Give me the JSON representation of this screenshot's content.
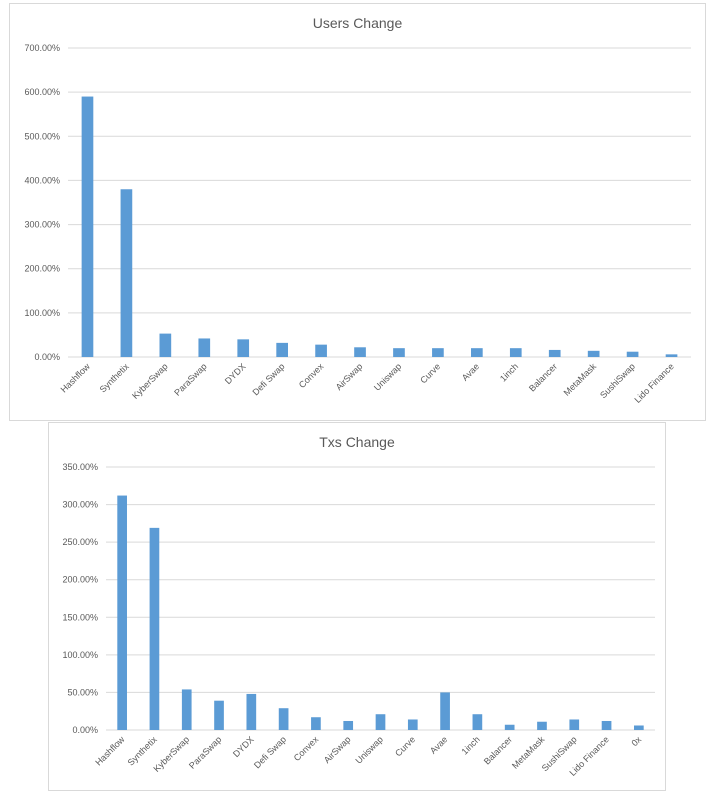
{
  "chart_data": [
    {
      "type": "bar",
      "title": "Users Change",
      "xlabel": "",
      "ylabel": "",
      "categories": [
        "Hashflow",
        "Synthetix",
        "KyberSwap",
        "ParaSwap",
        "DYDX",
        "Defi Swap",
        "Convex",
        "AirSwap",
        "Uniswap",
        "Curve",
        "Avae",
        "1inch",
        "Balancer",
        "MetaMask",
        "SushiSwap",
        "Lido Finance"
      ],
      "values": [
        590,
        380,
        53,
        42,
        40,
        32,
        28,
        22,
        20,
        20,
        20,
        20,
        16,
        14,
        12,
        6
      ],
      "yticks": [
        "0.00%",
        "100.00%",
        "200.00%",
        "300.00%",
        "400.00%",
        "500.00%",
        "600.00%",
        "700.00%"
      ],
      "ylim": [
        0,
        700
      ],
      "grid": true,
      "bar_color": "#5b9bd5"
    },
    {
      "type": "bar",
      "title": "Txs Change",
      "xlabel": "",
      "ylabel": "",
      "categories": [
        "Hashflow",
        "Synthetix",
        "KyberSwap",
        "ParaSwap",
        "DYDX",
        "Defi Swap",
        "Convex",
        "AirSwap",
        "Uniswap",
        "Curve",
        "Avae",
        "1inch",
        "Balancer",
        "MetaMask",
        "SushiSwap",
        "Lido Finance",
        "0x"
      ],
      "values": [
        312,
        269,
        54,
        39,
        48,
        29,
        17,
        12,
        21,
        14,
        50,
        21,
        7,
        11,
        14,
        12,
        6
      ],
      "yticks": [
        "0.00%",
        "50.00%",
        "100.00%",
        "150.00%",
        "200.00%",
        "250.00%",
        "300.00%",
        "350.00%"
      ],
      "ylim": [
        0,
        350
      ],
      "grid": true,
      "bar_color": "#5b9bd5"
    }
  ]
}
